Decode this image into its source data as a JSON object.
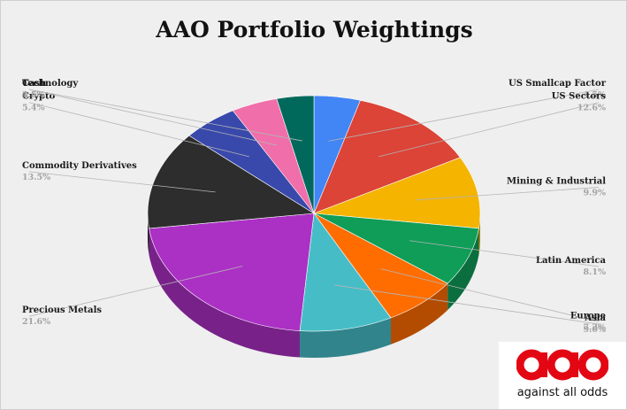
{
  "chart_data": {
    "type": "pie",
    "title": "AAO Portfolio Weightings",
    "slices": [
      {
        "label": "US Smallcap Factor",
        "display": "4.5%",
        "value": 4.5,
        "color": "#4285f4"
      },
      {
        "label": "US Sectors",
        "display": "12.6%",
        "value": 12.6,
        "color": "#db4437"
      },
      {
        "label": "Mining & Industrial",
        "display": "9.9%",
        "value": 9.9,
        "color": "#f4b400"
      },
      {
        "label": "Latin America",
        "display": "8.1%",
        "value": 8.1,
        "color": "#0f9d58"
      },
      {
        "label": "Europe",
        "display": "7.2%",
        "value": 7.2,
        "color": "#ff6d00"
      },
      {
        "label": "Asia",
        "display": "9.0%",
        "value": 9.0,
        "color": "#46bdc6"
      },
      {
        "label": "Precious Metals",
        "display": "21.6%",
        "value": 21.6,
        "color": "#ab30c4"
      },
      {
        "label": "Commodity Derivatives",
        "display": "13.5%",
        "value": 13.5,
        "color": "#2d2d2d"
      },
      {
        "label": "Crypto",
        "display": "5.4%",
        "value": 5.4,
        "color": "#3949ab"
      },
      {
        "label": "Technology",
        "display": "4.5%",
        "value": 4.5,
        "color": "#f06ea9"
      },
      {
        "label": "Cash",
        "display": "3.6%",
        "value": 3.6,
        "color": "#00695c"
      }
    ],
    "legend": "none"
  },
  "logo": {
    "mark_text": "aao",
    "tagline": "against all odds",
    "color": "#e30613"
  }
}
